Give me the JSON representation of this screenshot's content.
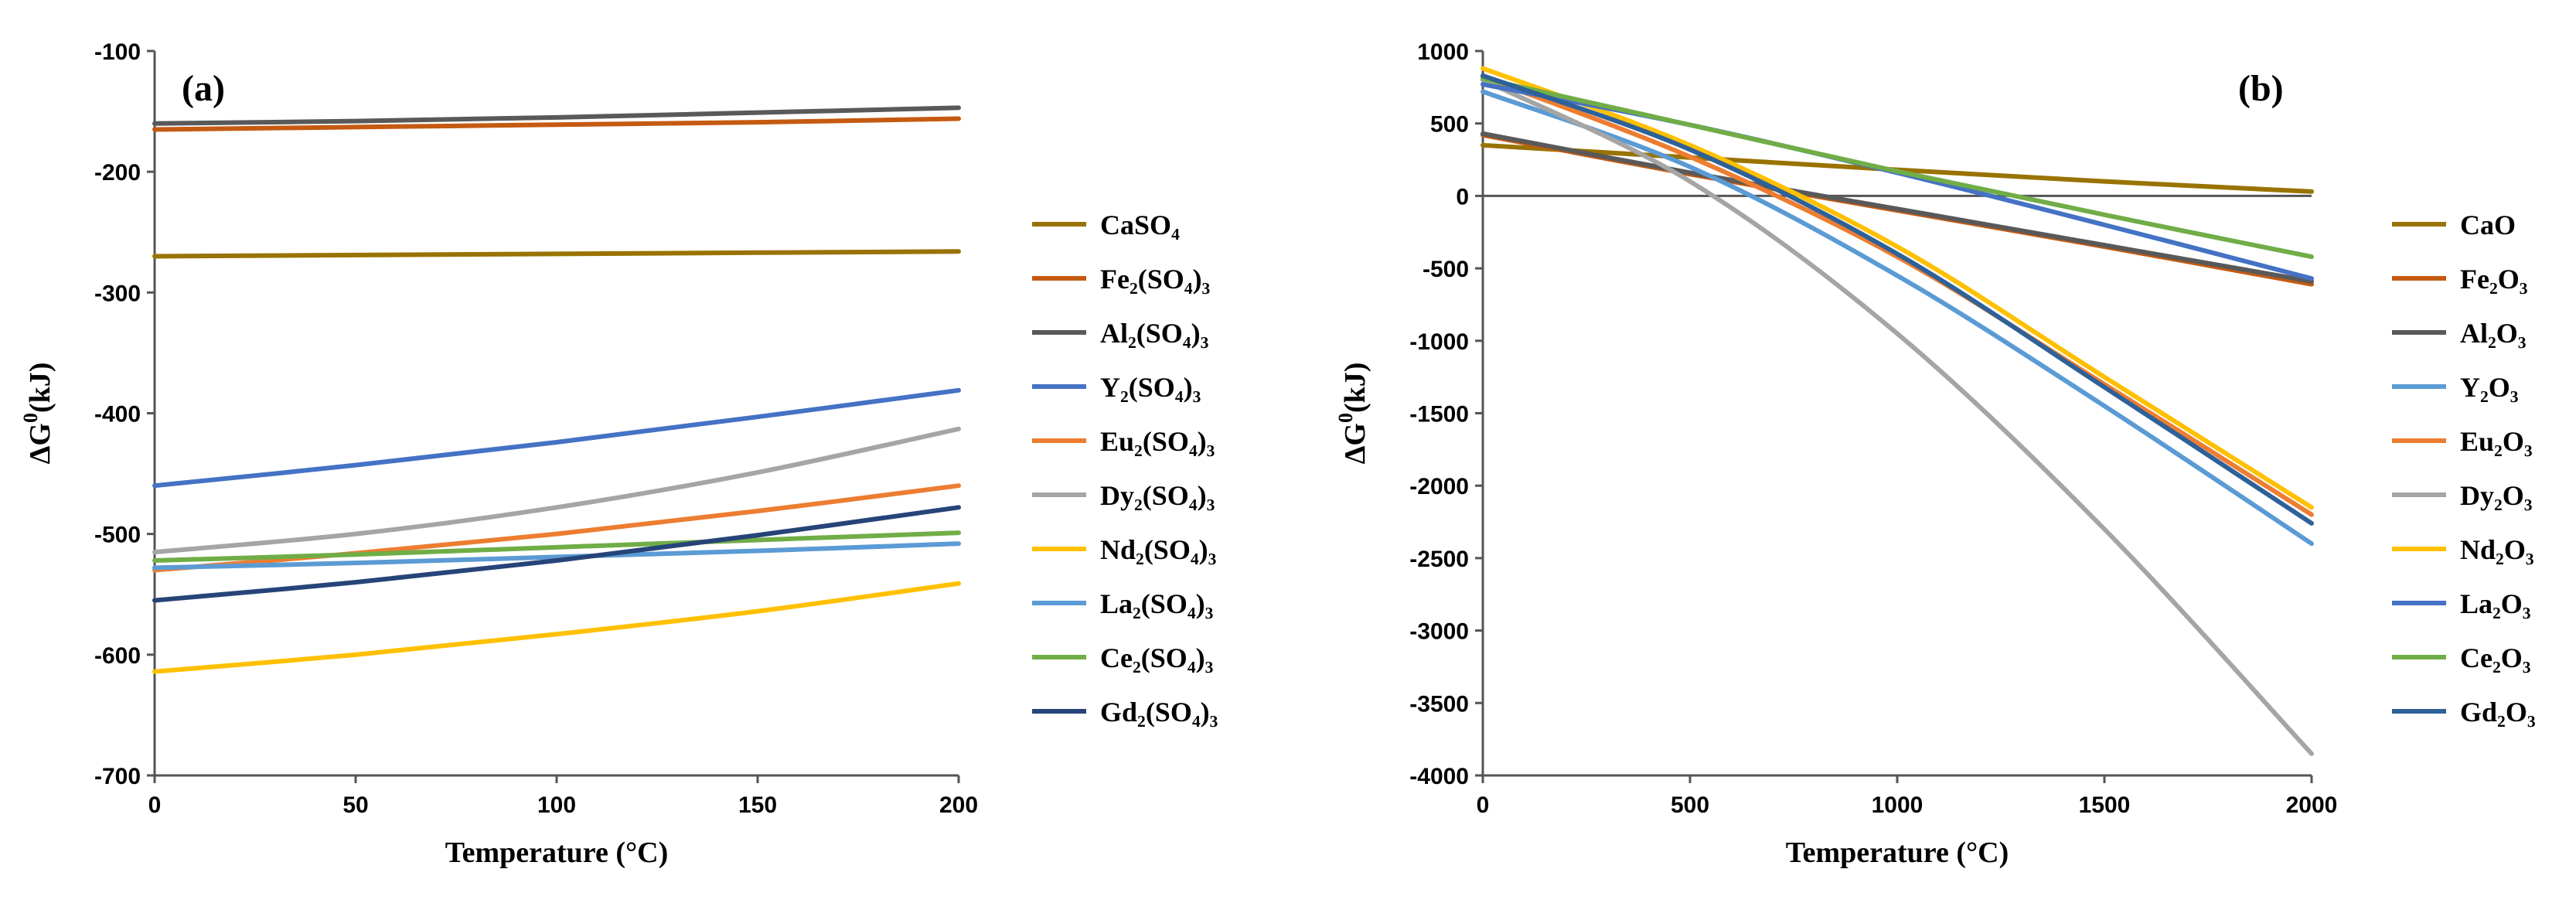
{
  "chart_data": [
    {
      "panel": "(a)",
      "type": "line",
      "xlabel": "Temperature (°C)",
      "ylabel": "ΔG0(kJ)",
      "xlim": [
        0,
        200
      ],
      "ylim": [
        -700,
        -100
      ],
      "xticks": [
        0,
        50,
        100,
        150,
        200
      ],
      "yticks": [
        -100,
        -200,
        -300,
        -400,
        -500,
        -600,
        -700
      ],
      "legend_position": "right",
      "series": [
        {
          "name": "CaSO4",
          "label": "CaSO₄",
          "color": "#997300",
          "x": [
            0,
            50,
            100,
            150,
            200
          ],
          "y": [
            -270,
            -269,
            -268,
            -267,
            -266
          ]
        },
        {
          "name": "Fe2(SO4)3",
          "label": "Fe₂(SO₄)₃",
          "color": "#C55A11",
          "x": [
            0,
            50,
            100,
            150,
            200
          ],
          "y": [
            -165,
            -163,
            -161,
            -159,
            -156
          ]
        },
        {
          "name": "Al2(SO4)3",
          "label": "Al₂(SO₄)₃",
          "color": "#595959",
          "x": [
            0,
            50,
            100,
            150,
            200
          ],
          "y": [
            -160,
            -158,
            -155,
            -151,
            -147
          ]
        },
        {
          "name": "Y2(SO4)3",
          "label": "Y₂(SO₄)₃",
          "color": "#4472C4",
          "x": [
            0,
            50,
            100,
            150,
            200
          ],
          "y": [
            -460,
            -443,
            -424,
            -403,
            -381
          ]
        },
        {
          "name": "Eu2(SO4)3",
          "label": "Eu₂(SO₄)₃",
          "color": "#ED7D31",
          "x": [
            0,
            50,
            100,
            150,
            200
          ],
          "y": [
            -530,
            -516,
            -500,
            -481,
            -460
          ]
        },
        {
          "name": "Dy2(SO4)3",
          "label": "Dy₂(SO₄)₃",
          "color": "#A5A5A5",
          "x": [
            0,
            50,
            100,
            150,
            200
          ],
          "y": [
            -515,
            -500,
            -478,
            -449,
            -413
          ]
        },
        {
          "name": "Nd2(SO4)3",
          "label": "Nd₂(SO₄)₃",
          "color": "#FFC000",
          "x": [
            0,
            50,
            100,
            150,
            200
          ],
          "y": [
            -614,
            -600,
            -583,
            -564,
            -541
          ]
        },
        {
          "name": "La2(SO4)3",
          "label": "La₂(SO₄)₃",
          "color": "#5B9BD5",
          "x": [
            0,
            50,
            100,
            150,
            200
          ],
          "y": [
            -528,
            -524,
            -519,
            -514,
            -508
          ]
        },
        {
          "name": "Ce2(SO4)3",
          "label": "Ce₂(SO₄)₃",
          "color": "#70AD47",
          "x": [
            0,
            50,
            100,
            150,
            200
          ],
          "y": [
            -522,
            -517,
            -511,
            -505,
            -499
          ]
        },
        {
          "name": "Gd2(SO4)3",
          "label": "Gd₂(SO₄)₃",
          "color": "#264478",
          "x": [
            0,
            50,
            100,
            150,
            200
          ],
          "y": [
            -555,
            -540,
            -522,
            -501,
            -478
          ]
        }
      ]
    },
    {
      "panel": "(b)",
      "type": "line",
      "xlabel": "Temperature (°C)",
      "ylabel": "ΔG0(kJ)",
      "xlim": [
        0,
        2000
      ],
      "ylim": [
        -4000,
        1000
      ],
      "xticks": [
        0,
        500,
        1000,
        1500,
        2000
      ],
      "yticks": [
        1000,
        500,
        0,
        -500,
        -1000,
        -1500,
        -2000,
        -2500,
        -3000,
        -3500,
        -4000
      ],
      "legend_position": "right",
      "series": [
        {
          "name": "CaO",
          "label": "CaO",
          "color": "#997300",
          "x": [
            0,
            500,
            1000,
            1500,
            2000
          ],
          "y": [
            350,
            265,
            180,
            100,
            30
          ]
        },
        {
          "name": "Fe2O3",
          "label": "Fe₂O₃",
          "color": "#C55A11",
          "x": [
            0,
            500,
            1000,
            1500,
            2000
          ],
          "y": [
            420,
            150,
            -100,
            -350,
            -610
          ]
        },
        {
          "name": "Al2O3",
          "label": "Al₂O₃",
          "color": "#595959",
          "x": [
            0,
            500,
            1000,
            1500,
            2000
          ],
          "y": [
            430,
            160,
            -90,
            -340,
            -590
          ]
        },
        {
          "name": "Y2O3",
          "label": "Y₂O₃",
          "color": "#5B9BD5",
          "x": [
            0,
            500,
            1000,
            1500,
            2000
          ],
          "y": [
            720,
            200,
            -550,
            -1450,
            -2400
          ]
        },
        {
          "name": "Eu2O3",
          "label": "Eu₂O₃",
          "color": "#ED7D31",
          "x": [
            0,
            500,
            1000,
            1500,
            2000
          ],
          "y": [
            820,
            270,
            -420,
            -1300,
            -2200
          ]
        },
        {
          "name": "Dy2O3",
          "label": "Dy₂O₃",
          "color": "#A5A5A5",
          "x": [
            0,
            500,
            1000,
            1500,
            2000
          ],
          "y": [
            800,
            100,
            -950,
            -2300,
            -3850
          ]
        },
        {
          "name": "Nd2O3",
          "label": "Nd₂O₃",
          "color": "#FFC000",
          "x": [
            0,
            500,
            1000,
            1500,
            2000
          ],
          "y": [
            880,
            350,
            -350,
            -1250,
            -2150
          ]
        },
        {
          "name": "La2O3",
          "label": "La₂O₃",
          "color": "#4472C4",
          "x": [
            0,
            500,
            1000,
            1500,
            2000
          ],
          "y": [
            770,
            490,
            160,
            -200,
            -570
          ]
        },
        {
          "name": "Ce2O3",
          "label": "Ce₂O₃",
          "color": "#70AD47",
          "x": [
            0,
            500,
            1000,
            1500,
            2000
          ],
          "y": [
            810,
            490,
            170,
            -130,
            -420
          ]
        },
        {
          "name": "Gd2O3",
          "label": "Gd₂O₃",
          "color": "#2E6198",
          "x": [
            0,
            500,
            1000,
            1500,
            2000
          ],
          "y": [
            830,
            320,
            -400,
            -1320,
            -2260
          ]
        }
      ]
    }
  ]
}
